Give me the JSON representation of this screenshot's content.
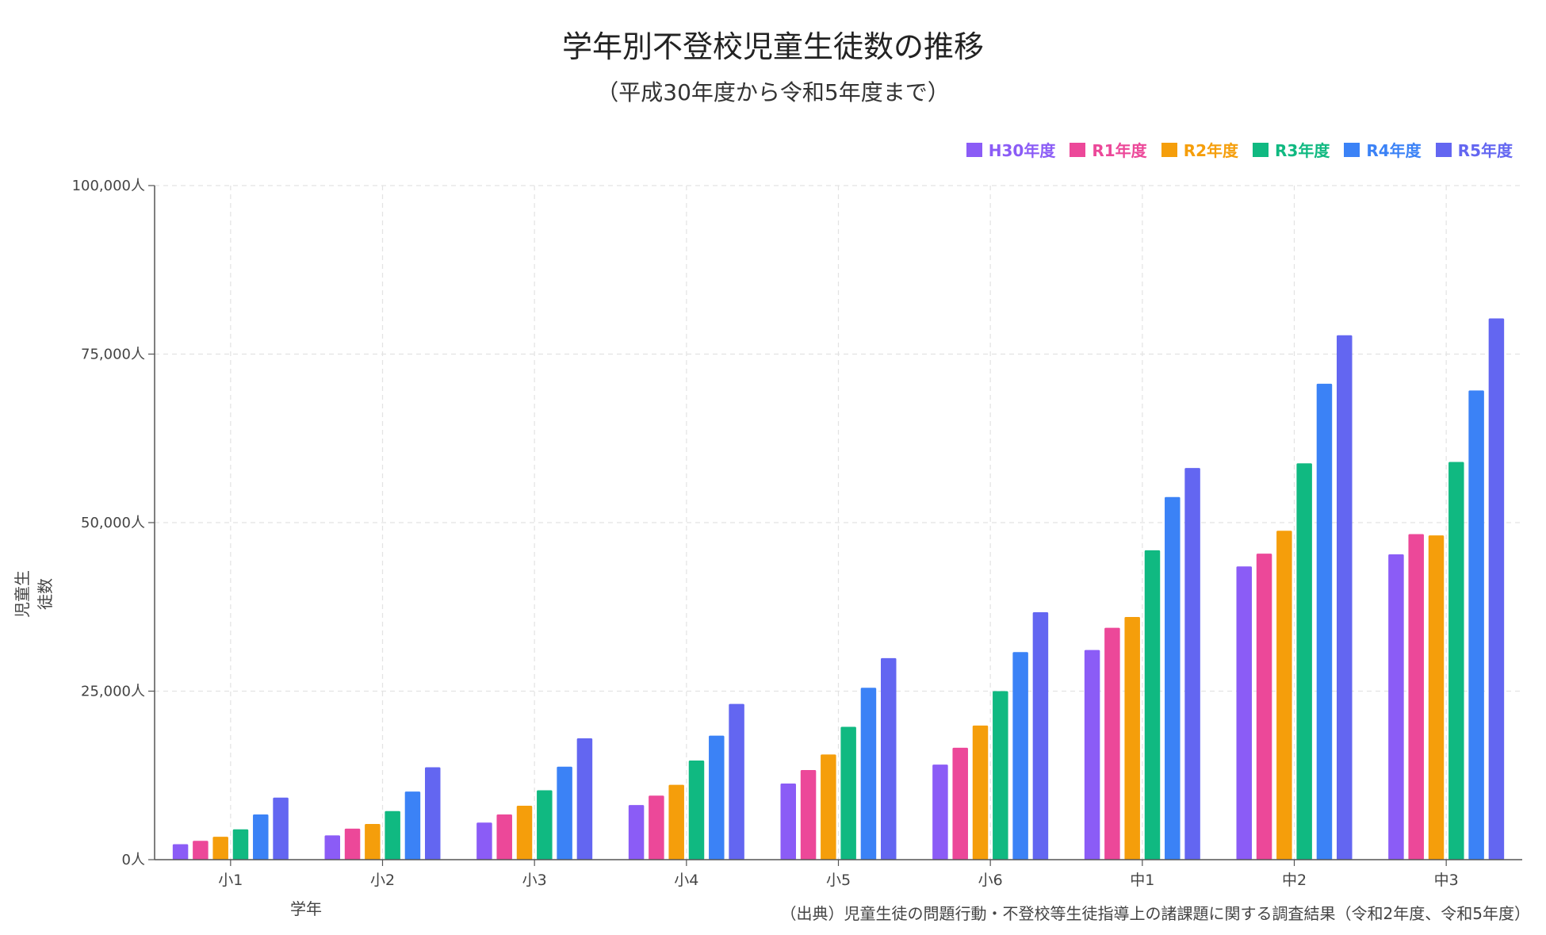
{
  "chart_data": {
    "type": "bar",
    "title": "学年別不登校児童生徒数の推移",
    "subtitle": "（平成30年度から令和5年度まで）",
    "xlabel": "学年",
    "ylabel": "児童生徒数",
    "source": "（出典）児童生徒の問題行動・不登校等生徒指導上の諸課題に関する調査結果（令和2年度、令和5年度）",
    "categories": [
      "小1",
      "小2",
      "小3",
      "小4",
      "小5",
      "小6",
      "中1",
      "中2",
      "中3"
    ],
    "ylim": [
      0,
      100000
    ],
    "yticks": [
      0,
      25000,
      50000,
      75000,
      100000
    ],
    "ytick_labels": [
      "0人",
      "25,000人",
      "50,000人",
      "75,000人",
      "100,000人"
    ],
    "grid": true,
    "legend_position": "top-right",
    "series": [
      {
        "name": "H30年度",
        "color": "#8b5cf6",
        "values": [
          2300,
          3600,
          5500,
          8100,
          11300,
          14100,
          31100,
          43500,
          45300
        ]
      },
      {
        "name": "R1年度",
        "color": "#ec4899",
        "values": [
          2800,
          4600,
          6700,
          9500,
          13300,
          16600,
          34400,
          45400,
          48300
        ]
      },
      {
        "name": "R2年度",
        "color": "#f59e0b",
        "values": [
          3400,
          5300,
          8000,
          11100,
          15600,
          19900,
          36000,
          48800,
          48100
        ]
      },
      {
        "name": "R3年度",
        "color": "#10b981",
        "values": [
          4500,
          7200,
          10300,
          14700,
          19700,
          25000,
          45900,
          58800,
          59000
        ]
      },
      {
        "name": "R4年度",
        "color": "#3b82f6",
        "values": [
          6700,
          10100,
          13800,
          18400,
          25500,
          30800,
          53800,
          70600,
          69600
        ]
      },
      {
        "name": "R5年度",
        "color": "#6366f1",
        "values": [
          9200,
          13700,
          18000,
          23100,
          29900,
          36700,
          58100,
          77800,
          80300
        ]
      }
    ]
  }
}
